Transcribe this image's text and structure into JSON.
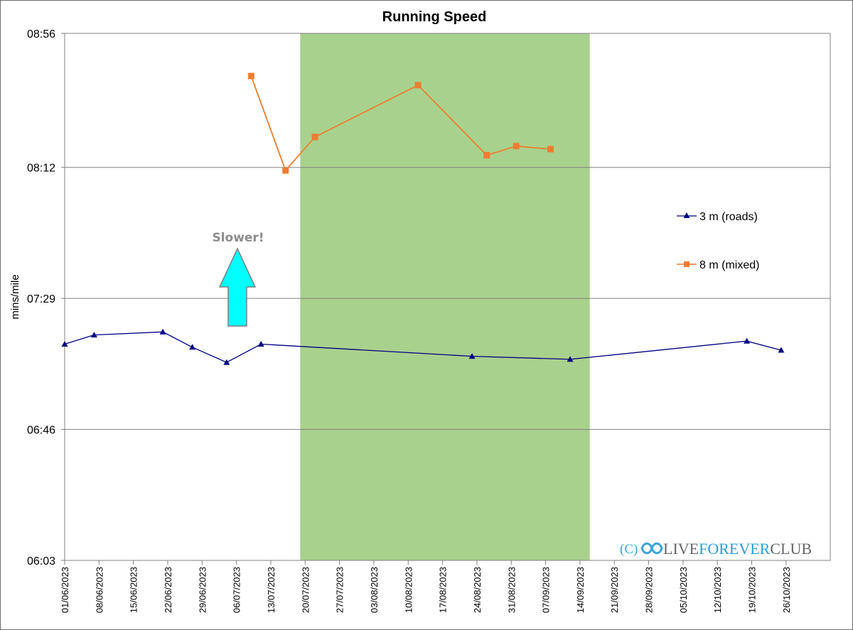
{
  "chart_data": {
    "type": "line",
    "title": "Running Speed",
    "xlabel": "",
    "ylabel": "mins/mile",
    "y_ticks": [
      "06:03",
      "06:46",
      "07:29",
      "08:12",
      "08:56"
    ],
    "ylim": [
      "06:03",
      "08:56"
    ],
    "x_ticks": [
      "01/06/2023",
      "08/06/2023",
      "15/06/2023",
      "22/06/2023",
      "29/06/2023",
      "06/07/2023",
      "13/07/2023",
      "20/07/2023",
      "27/07/2023",
      "03/08/2023",
      "10/08/2023",
      "17/08/2023",
      "24/08/2023",
      "31/08/2023",
      "07/09/2023",
      "14/09/2023",
      "21/09/2023",
      "28/09/2023",
      "05/10/2023",
      "12/10/2023",
      "19/10/2023",
      "26/10/2023"
    ],
    "xlim": [
      "01/06/2023",
      "04/11/2023"
    ],
    "highlight_range": [
      "19/07/2023",
      "16/09/2023"
    ],
    "highlight_color": "#a9d18e",
    "grid": "horizontal",
    "legend_position": "right",
    "series": [
      {
        "name": "3 m (roads)",
        "color": "#000080",
        "marker": "triangle",
        "points": [
          {
            "x": "01/06/2023",
            "y": "07:14"
          },
          {
            "x": "07/06/2023",
            "y": "07:17"
          },
          {
            "x": "21/06/2023",
            "y": "07:18"
          },
          {
            "x": "27/06/2023",
            "y": "07:13"
          },
          {
            "x": "04/07/2023",
            "y": "07:08"
          },
          {
            "x": "11/07/2023",
            "y": "07:14"
          },
          {
            "x": "23/08/2023",
            "y": "07:10"
          },
          {
            "x": "12/09/2023",
            "y": "07:09"
          },
          {
            "x": "18/10/2023",
            "y": "07:15"
          },
          {
            "x": "25/10/2023",
            "y": "07:12"
          }
        ]
      },
      {
        "name": "8 m (mixed)",
        "color": "#ed7d31",
        "marker": "square",
        "points": [
          {
            "x": "09/07/2023",
            "y": "08:42"
          },
          {
            "x": "16/07/2023",
            "y": "08:11"
          },
          {
            "x": "22/07/2023",
            "y": "08:22"
          },
          {
            "x": "12/08/2023",
            "y": "08:39"
          },
          {
            "x": "26/08/2023",
            "y": "08:16"
          },
          {
            "x": "01/09/2023",
            "y": "08:19"
          },
          {
            "x": "08/09/2023",
            "y": "08:18"
          }
        ]
      }
    ],
    "annotations": [
      {
        "text": "Slower!",
        "arrow": "up",
        "arrow_color": "#00ffff"
      }
    ]
  },
  "watermark": {
    "prefix": "(C)",
    "word1": "LIVE",
    "word2": "FOREVER",
    "word3": "CLUB"
  }
}
